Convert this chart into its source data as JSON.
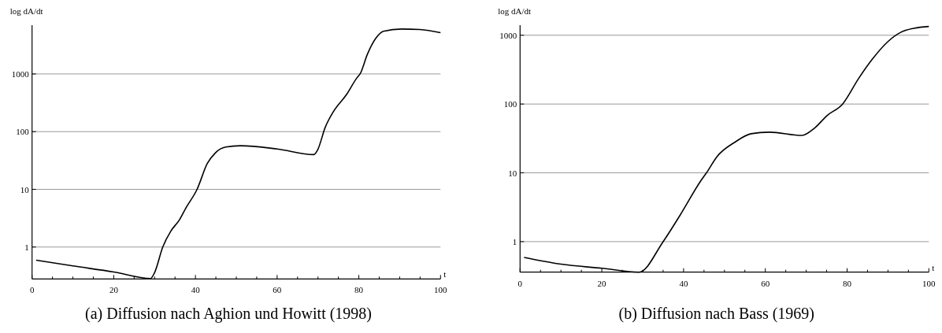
{
  "chart_data": [
    {
      "type": "line",
      "title": "(a) Diffusion nach Aghion und Howitt (1998)",
      "xlabel": "t",
      "ylabel": "log dA/dt",
      "log": "y",
      "grid": "y",
      "marker": "none",
      "line_style": "solid",
      "xlim": [
        0,
        100
      ],
      "ylim": [
        0.28,
        7000
      ],
      "xticks": [
        0,
        {
          "value": 5,
          "label": null
        },
        {
          "value": 10,
          "label": null
        },
        {
          "value": 15,
          "label": null
        },
        20,
        {
          "value": 25,
          "label": null
        },
        {
          "value": 30,
          "label": null
        },
        {
          "value": 35,
          "label": null
        },
        40,
        {
          "value": 45,
          "label": null
        },
        {
          "value": 50,
          "label": null
        },
        {
          "value": 55,
          "label": null
        },
        60,
        {
          "value": 65,
          "label": null
        },
        {
          "value": 70,
          "label": null
        },
        {
          "value": 75,
          "label": null
        },
        80,
        {
          "value": 85,
          "label": null
        },
        {
          "value": 90,
          "label": null
        },
        {
          "value": 95,
          "label": null
        },
        100
      ],
      "yticks": [
        1,
        10,
        100,
        1000
      ],
      "series": [
        {
          "color": "#000000",
          "x": [
            1,
            10,
            20,
            29,
            30,
            32,
            34,
            36,
            37.7,
            40.4,
            42.9,
            44.9,
            47.4,
            51,
            60,
            69,
            69.9,
            71.8,
            73.8,
            77,
            79.6,
            80.3,
            82.1,
            84.1,
            86,
            90.5,
            95,
            100
          ],
          "values": [
            0.59,
            0.47,
            0.37,
            0.285,
            0.36,
            1,
            1.9,
            2.9,
            4.8,
            10,
            28,
            43,
            54,
            57,
            50,
            40,
            48,
            120,
            224,
            440,
            870,
            1000,
            2200,
            4100,
            5500,
            6000,
            5900,
            5200
          ]
        }
      ]
    },
    {
      "type": "line",
      "title": "(b) Diffusion nach Bass (1969)",
      "xlabel": "t",
      "ylabel": "log dA/dt",
      "log": "y",
      "grid": "y",
      "marker": "none",
      "line_style": "solid",
      "xlim": [
        0,
        100
      ],
      "ylim": [
        0.36,
        1400
      ],
      "xticks": [
        0,
        {
          "value": 5,
          "label": null
        },
        {
          "value": 10,
          "label": null
        },
        {
          "value": 15,
          "label": null
        },
        20,
        {
          "value": 25,
          "label": null
        },
        {
          "value": 30,
          "label": null
        },
        {
          "value": 35,
          "label": null
        },
        40,
        {
          "value": 45,
          "label": null
        },
        {
          "value": 50,
          "label": null
        },
        {
          "value": 55,
          "label": null
        },
        60,
        {
          "value": 65,
          "label": null
        },
        {
          "value": 70,
          "label": null
        },
        {
          "value": 75,
          "label": null
        },
        80,
        {
          "value": 85,
          "label": null
        },
        {
          "value": 90,
          "label": null
        },
        {
          "value": 95,
          "label": null
        },
        100
      ],
      "yticks": [
        1,
        10,
        100,
        1000
      ],
      "series": [
        {
          "color": "#000000",
          "x": [
            1,
            10,
            20,
            29.1,
            35,
            39.1,
            44.3,
            45.6,
            48.1,
            52.6,
            56.5,
            61,
            69,
            71.9,
            75.1,
            78.9,
            82.8,
            86,
            89.9,
            93.1,
            96.3,
            100
          ],
          "values": [
            0.59,
            0.47,
            0.41,
            0.36,
            1,
            2.4,
            7.8,
            10,
            17,
            28,
            37,
            39,
            35,
            44,
            68,
            100,
            234,
            435,
            800,
            1100,
            1260,
            1340
          ]
        }
      ]
    }
  ]
}
